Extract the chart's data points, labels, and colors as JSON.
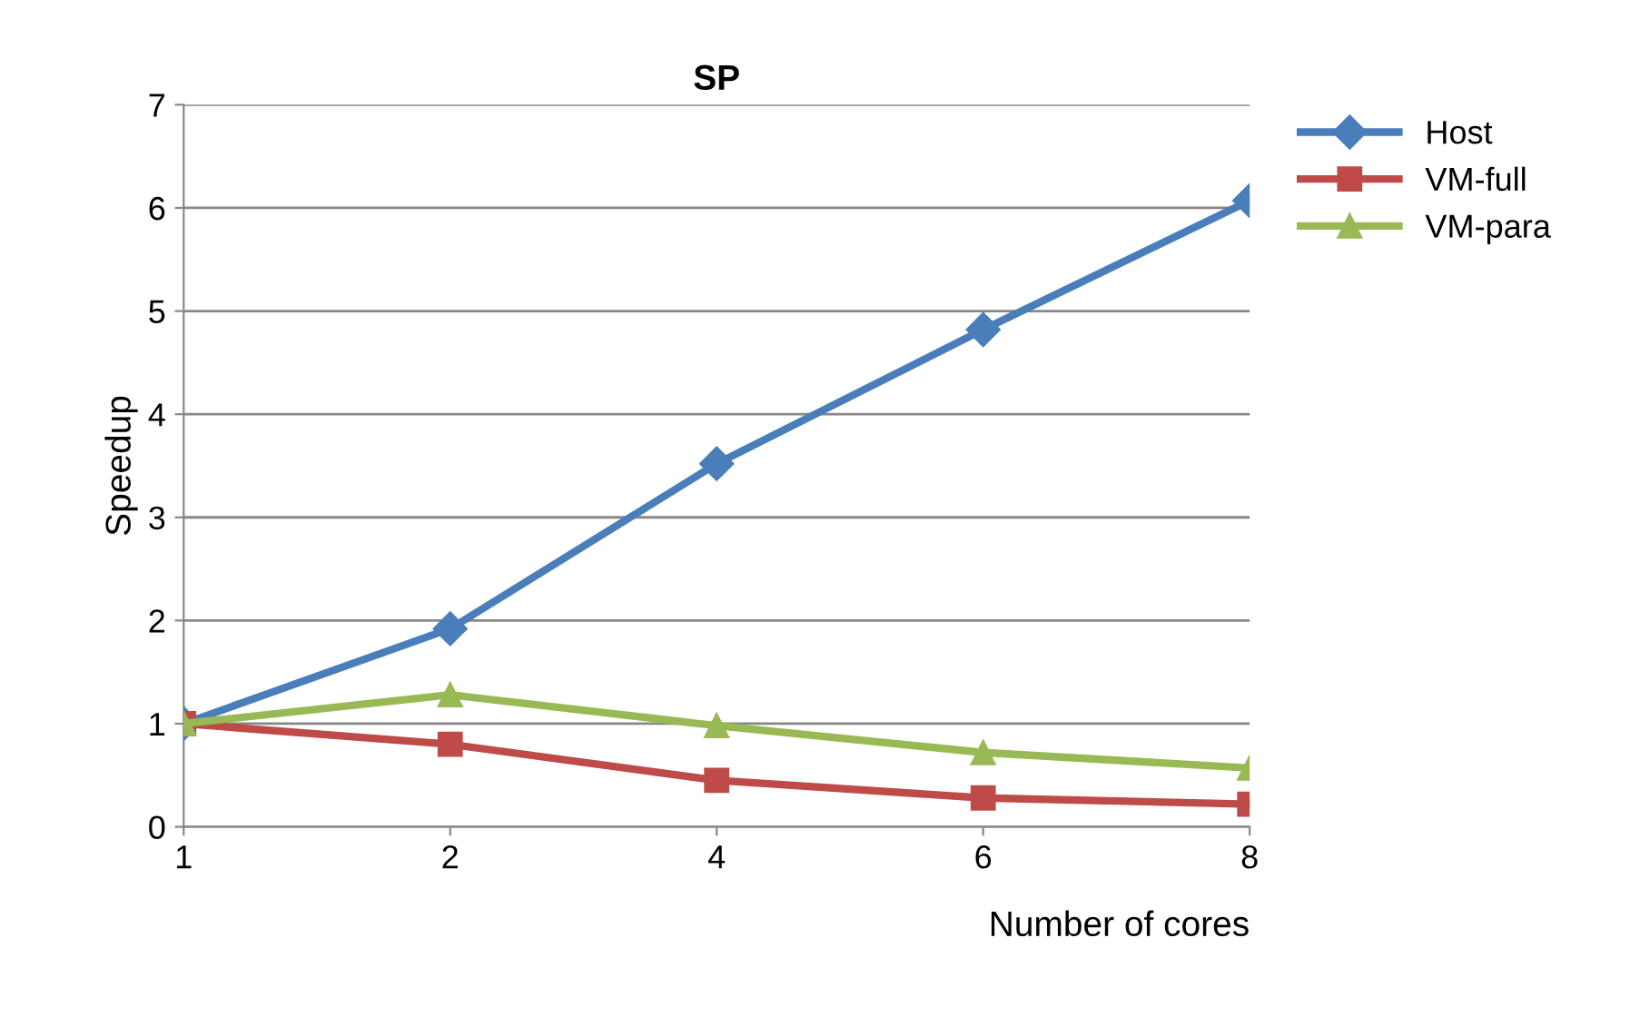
{
  "chart_data": {
    "type": "line",
    "title": "SP",
    "xlabel": "Number of cores",
    "ylabel": "Speedup",
    "categories": [
      "1",
      "2",
      "4",
      "6",
      "8"
    ],
    "series": [
      {
        "name": "Host",
        "color": "#4a7ebb",
        "values": [
          1,
          1.92,
          3.52,
          4.82,
          6.07
        ],
        "marker": "diamond"
      },
      {
        "name": "VM-full",
        "color": "#be4b48",
        "values": [
          1,
          0.8,
          0.45,
          0.28,
          0.22
        ],
        "marker": "square"
      },
      {
        "name": "VM-para",
        "color": "#98b954",
        "values": [
          1,
          1.28,
          0.98,
          0.72,
          0.57
        ],
        "marker": "triangle"
      }
    ],
    "ylim": [
      0,
      7
    ],
    "yticks": [
      0,
      1,
      2,
      3,
      4,
      5,
      6,
      7
    ],
    "grid": "y",
    "legend": "right",
    "line_style": "solid"
  }
}
